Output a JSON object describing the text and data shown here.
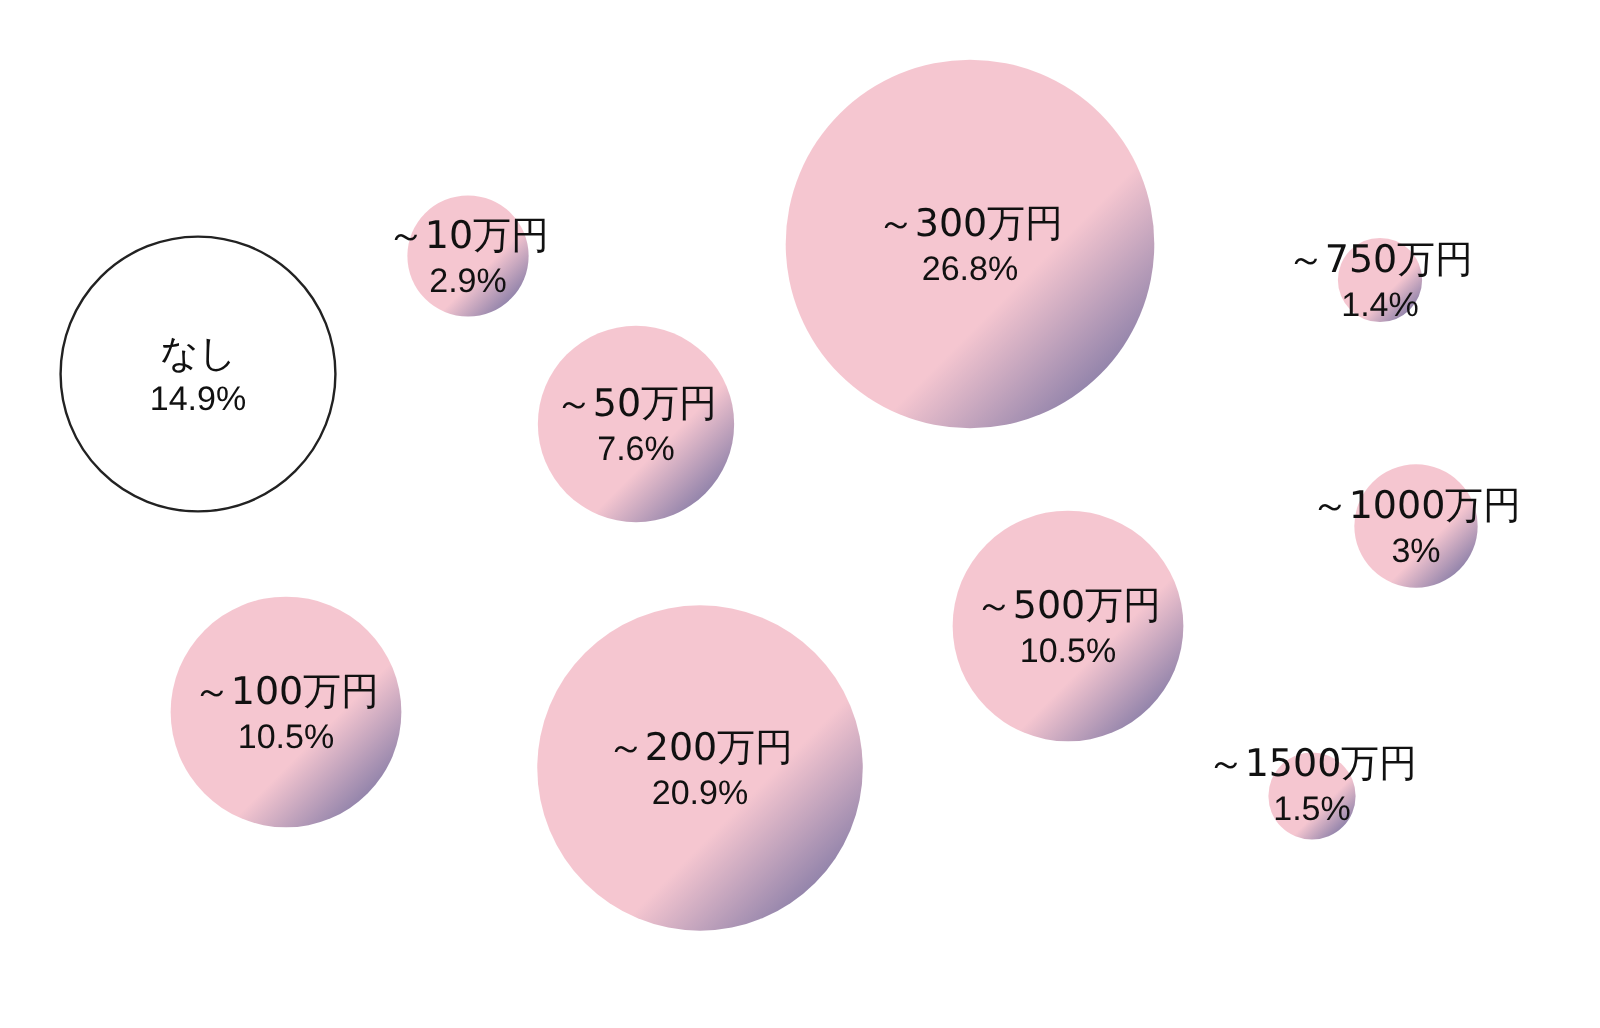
{
  "chart_data": {
    "type": "other",
    "categories": [
      "なし",
      "～10万円",
      "～50万円",
      "～100万円",
      "～200万円",
      "～300万円",
      "～500万円",
      "～750万円",
      "～1000万円",
      "～1500万円"
    ],
    "values": [
      14.9,
      2.9,
      7.6,
      10.5,
      20.9,
      26.8,
      10.5,
      1.4,
      3,
      1.5
    ],
    "value_labels": [
      "14.9%",
      "2.9%",
      "7.6%",
      "10.5%",
      "20.9%",
      "26.8%",
      "10.5%",
      "1.4%",
      "3%",
      "1.5%"
    ],
    "colors": [
      "#ffffff",
      "#f5c6d0",
      "#f5c6d0",
      "#f5c6d0",
      "#f5c6d0",
      "#f5c6d0",
      "#f5c6d0",
      "#f5c6d0",
      "#f5c6d0",
      "#f5c6d0"
    ]
  }
}
